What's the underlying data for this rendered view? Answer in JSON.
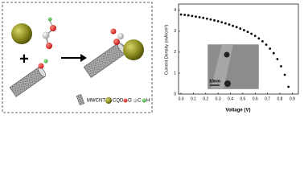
{
  "schematic": {
    "legend": [
      "MWCNT",
      "CQDs",
      "O",
      "C",
      "H"
    ]
  },
  "chart_data": {
    "type": "scatter",
    "x_label": "Voltage (V)",
    "y_label": "Current Density (mA/cm²)",
    "inset_scale": "10nm",
    "color": "#000000",
    "x": [
      0,
      0.03,
      0.06,
      0.09,
      0.12,
      0.15,
      0.18,
      0.21,
      0.24,
      0.27,
      0.3,
      0.33,
      0.36,
      0.39,
      0.42,
      0.45,
      0.48,
      0.51,
      0.54,
      0.57,
      0.6,
      0.63,
      0.66,
      0.69,
      0.72,
      0.75,
      0.78,
      0.81,
      0.84,
      0.87
    ],
    "values": [
      3.8,
      3.78,
      3.76,
      3.73,
      3.7,
      3.67,
      3.64,
      3.6,
      3.56,
      3.52,
      3.48,
      3.43,
      3.38,
      3.32,
      3.26,
      3.2,
      3.13,
      3.05,
      2.97,
      2.88,
      2.78,
      2.66,
      2.52,
      2.36,
      2.17,
      1.95,
      1.67,
      1.33,
      0.92,
      0.35
    ],
    "xlim": [
      -0.02,
      0.95
    ],
    "ylim": [
      0,
      4.3
    ],
    "xticks": [
      {
        "value": 0,
        "label": "0.0"
      },
      {
        "value": 0.1,
        "label": "0.1"
      },
      {
        "value": 0.2,
        "label": "0.2"
      },
      {
        "value": 0.3,
        "label": "0.3"
      },
      {
        "value": 0.4,
        "label": "0.4"
      },
      {
        "value": 0.5,
        "label": "0.5"
      },
      {
        "value": 0.6,
        "label": "0.6"
      },
      {
        "value": 0.7,
        "label": "0.7"
      },
      {
        "value": 0.8,
        "label": "0.8"
      },
      {
        "value": 0.9,
        "label": "0.9"
      }
    ],
    "yticks": [
      0,
      1,
      2,
      3,
      4
    ]
  }
}
